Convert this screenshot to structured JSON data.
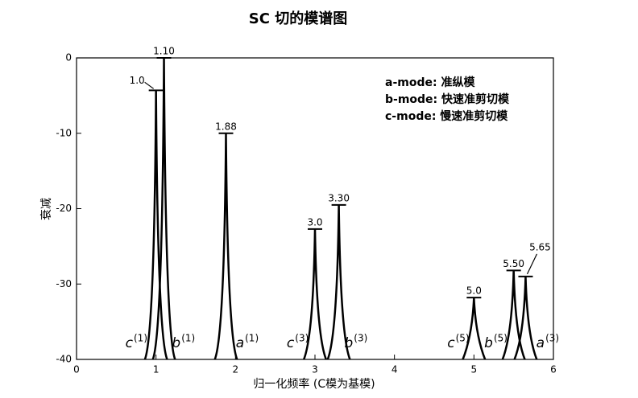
{
  "chart_data": {
    "type": "spectrum",
    "title": "SC 切的模谱图",
    "x_label": "归一化频率 (C模为基模)",
    "y_label": "衰减",
    "xlim": [
      0,
      6
    ],
    "xticks": [
      0,
      1,
      2,
      3,
      4,
      5,
      6
    ],
    "ylim": [
      -40,
      0
    ],
    "yticks": [
      0,
      -10,
      -20,
      -30,
      -40
    ],
    "x": [
      1.0,
      1.1,
      1.88,
      3.0,
      3.3,
      5.0,
      5.5,
      5.65
    ],
    "peak_labels": [
      "1.0",
      "1.10",
      "1.88",
      "3.0",
      "3.30",
      "5.0",
      "5.50",
      "5.65"
    ],
    "values": [
      -4.3,
      0,
      -10,
      -22.7,
      -19.5,
      -31.8,
      -28.2,
      -29
    ],
    "modes": [
      "c",
      "b",
      "a",
      "c",
      "b",
      "c",
      "b",
      "a"
    ],
    "orders": [
      "(1)",
      "(1)",
      "(1)",
      "(3)",
      "(3)",
      "(5)",
      "(5)",
      "(3)"
    ],
    "color": "#000000",
    "legend_notes": [
      "a-mode: 准纵模",
      "b-mode: 快速准剪切模",
      "c-mode: 慢速准剪切模"
    ]
  }
}
